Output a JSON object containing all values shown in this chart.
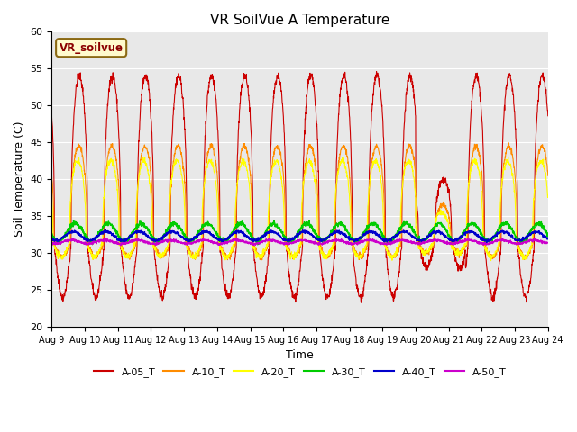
{
  "title": "VR SoilVue A Temperature",
  "xlabel": "Time",
  "ylabel": "Soil Temperature (C)",
  "ylim": [
    20,
    60
  ],
  "background_color": "#e8e8e8",
  "legend_label": "VR_soilvue",
  "series_colors": {
    "A-05_T": "#cc0000",
    "A-10_T": "#ff8c00",
    "A-20_T": "#ffff00",
    "A-30_T": "#00cc00",
    "A-40_T": "#0000cc",
    "A-50_T": "#cc00cc"
  },
  "yticks": [
    20,
    25,
    30,
    35,
    40,
    45,
    50,
    55,
    60
  ],
  "xtick_labels": [
    "Aug 9",
    "Aug 10",
    "Aug 11",
    "Aug 12",
    "Aug 13",
    "Aug 14",
    "Aug 15",
    "Aug 16",
    "Aug 17",
    "Aug 18",
    "Aug 19",
    "Aug 20",
    "Aug 21",
    "Aug 22",
    "Aug 23",
    "Aug 24"
  ]
}
